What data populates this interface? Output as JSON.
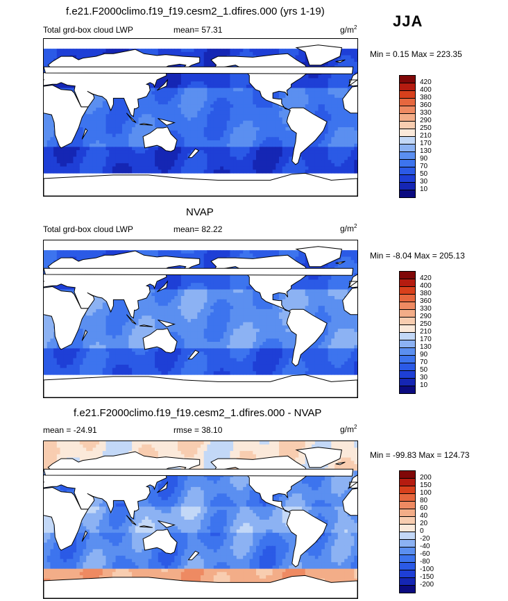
{
  "season_label": "JJA",
  "panels": [
    {
      "title": "f.e21.F2000climo.f19_f19.cesm2_1.dfires.000 (yrs 1-19)",
      "left_label": "Total grd-box cloud LWP",
      "mid_label": "mean=  57.31",
      "unit_base": "g/m",
      "unit_exp": "2",
      "minmax": "Min =   0.15 Max = 223.35",
      "levels": [
        "10",
        "30",
        "50",
        "70",
        "90",
        "130",
        "170",
        "210",
        "250",
        "290",
        "330",
        "360",
        "380",
        "400",
        "420"
      ]
    },
    {
      "title": "NVAP",
      "left_label": "Total grd-box cloud LWP",
      "mid_label": "mean=  82.22",
      "unit_base": "g/m",
      "unit_exp": "2",
      "minmax": "Min =  -8.04 Max = 205.13",
      "levels": [
        "10",
        "30",
        "50",
        "70",
        "90",
        "130",
        "170",
        "210",
        "250",
        "290",
        "330",
        "360",
        "380",
        "400",
        "420"
      ]
    },
    {
      "title": "f.e21.F2000climo.f19_f19.cesm2_1.dfires.000 - NVAP",
      "left_label": "mean = -24.91",
      "mid_label": "rmse =  38.10",
      "unit_base": "g/m",
      "unit_exp": "2",
      "minmax": "Min = -99.83 Max = 124.73",
      "levels": [
        "-200",
        "-150",
        "-100",
        "-80",
        "-60",
        "-40",
        "-20",
        "0",
        "20",
        "40",
        "60",
        "80",
        "100",
        "150",
        "200"
      ]
    }
  ],
  "colors": {
    "palette": [
      "#0b0b80",
      "#1526b4",
      "#1e3fd6",
      "#2b5ae6",
      "#3d74ee",
      "#5b8ff0",
      "#8cb2f3",
      "#c3d8f7",
      "#fbe9da",
      "#f8cdb0",
      "#f3ad88",
      "#ee8a62",
      "#e6673e",
      "#d8401c",
      "#b51c10",
      "#800808"
    ],
    "land": "#ffffff",
    "coast": "#000000"
  },
  "chart_data": [
    {
      "type": "heatmap",
      "title": "f.e21.F2000climo.f19_f19.cesm2_1.dfires.000 (yrs 1-19)",
      "variable": "Total grd-box cloud LWP",
      "units": "g/m^2",
      "mean": 57.31,
      "min": 0.15,
      "max": 223.35,
      "contour_levels": [
        10,
        30,
        50,
        70,
        90,
        130,
        170,
        210,
        250,
        290,
        330,
        360,
        380,
        400,
        420
      ]
    },
    {
      "type": "heatmap",
      "title": "NVAP",
      "variable": "Total grd-box cloud LWP",
      "units": "g/m^2",
      "mean": 82.22,
      "min": -8.04,
      "max": 205.13,
      "contour_levels": [
        10,
        30,
        50,
        70,
        90,
        130,
        170,
        210,
        250,
        290,
        330,
        360,
        380,
        400,
        420
      ]
    },
    {
      "type": "heatmap",
      "title": "f.e21.F2000climo.f19_f19.cesm2_1.dfires.000 - NVAP",
      "units": "g/m^2",
      "mean": -24.91,
      "rmse": 38.1,
      "min": -99.83,
      "max": 124.73,
      "contour_levels": [
        -200,
        -150,
        -100,
        -80,
        -60,
        -40,
        -20,
        0,
        20,
        40,
        60,
        80,
        100,
        150,
        200
      ]
    }
  ]
}
